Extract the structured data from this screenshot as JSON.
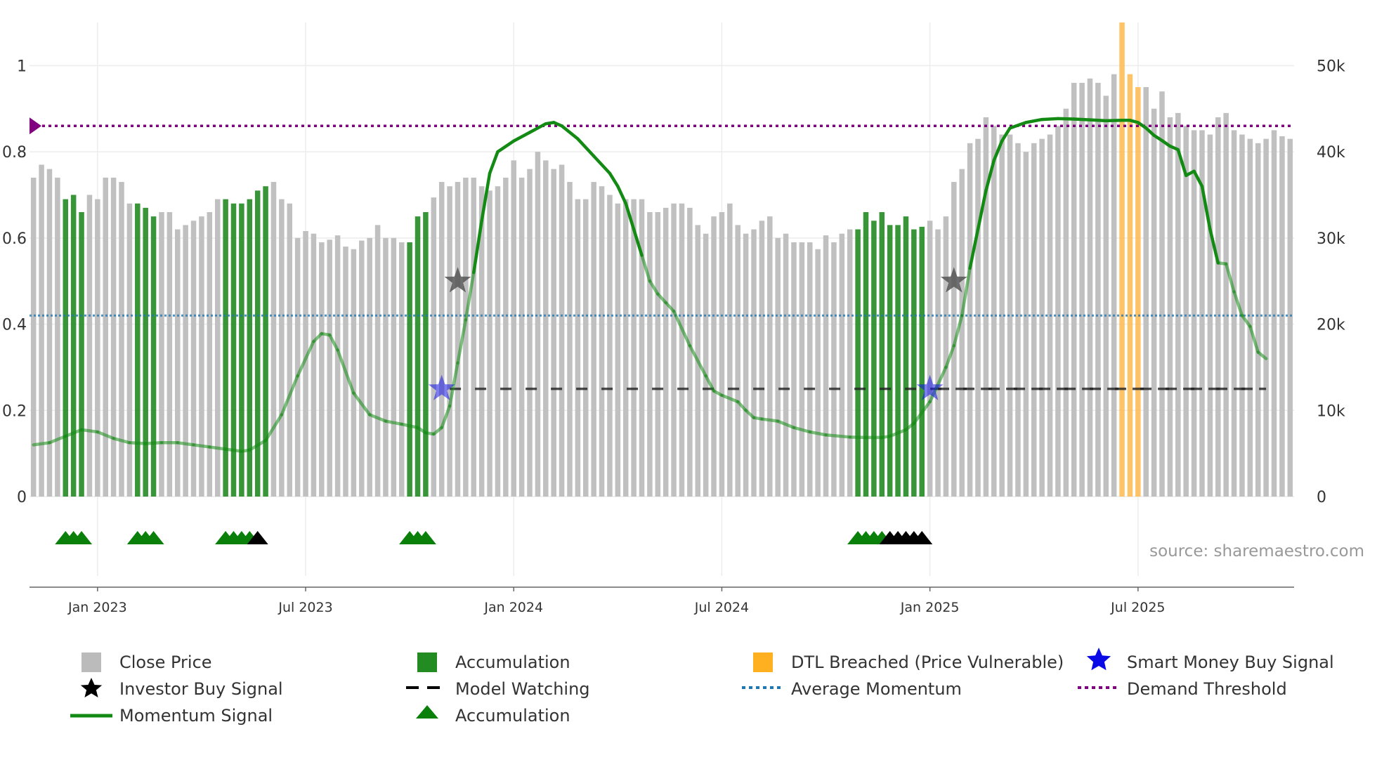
{
  "chart_data": {
    "type": "bar",
    "source": "source: sharemaestro.com",
    "left_axis": {
      "ticks": [
        0,
        0.2,
        0.4,
        0.6,
        0.8,
        1
      ],
      "labels": [
        "0",
        "0.2",
        "0.4",
        "0.6",
        "0.8",
        "1"
      ],
      "ylim": [
        0,
        1.1
      ]
    },
    "right_axis": {
      "ticks": [
        0,
        10000,
        20000,
        30000,
        40000,
        50000
      ],
      "labels": [
        "0",
        "10k",
        "20k",
        "30k",
        "40k",
        "50k"
      ],
      "ylim": [
        0,
        55000
      ]
    },
    "x_axis": {
      "ticks": [
        8,
        34,
        60,
        86,
        112,
        138
      ],
      "labels": [
        "Jan 2023",
        "Jul 2023",
        "Jan 2024",
        "Jul 2024",
        "Jan 2025",
        "Jul 2025"
      ]
    },
    "close_price": [
      37000,
      38500,
      38000,
      37000,
      34500,
      35000,
      33000,
      35000,
      34500,
      37000,
      37000,
      36500,
      34000,
      34000,
      33500,
      32500,
      33000,
      33000,
      31000,
      31500,
      32000,
      32500,
      33000,
      34500,
      34500,
      34000,
      34000,
      34500,
      35500,
      36000,
      36500,
      34500,
      34000,
      30000,
      30800,
      30500,
      29500,
      29800,
      30300,
      29000,
      28700,
      29700,
      30000,
      31500,
      30000,
      30000,
      29500,
      29500,
      32500,
      33000,
      34700,
      36500,
      36000,
      36500,
      37000,
      37000,
      36000,
      35500,
      36000,
      37000,
      39000,
      37000,
      38000,
      40000,
      39000,
      38000,
      38500,
      36500,
      34500,
      34500,
      36500,
      36000,
      35000,
      34000,
      34500,
      34500,
      34500,
      33000,
      33000,
      33500,
      34000,
      34000,
      33500,
      31500,
      30500,
      32500,
      33000,
      34000,
      31500,
      30500,
      31000,
      32000,
      32500,
      30000,
      30500,
      29500,
      29500,
      29500,
      28700,
      30300,
      29500,
      30500,
      31000,
      31000,
      33000,
      32000,
      33000,
      31500,
      31500,
      32500,
      31000,
      31300,
      32000,
      31000,
      32500,
      36500,
      38000,
      41000,
      41500,
      44000,
      43000,
      42000,
      42000,
      41000,
      40000,
      41000,
      41500,
      42000,
      43000,
      45000,
      48000,
      48000,
      48500,
      48000,
      46500,
      49000,
      49500,
      49000,
      47500,
      47500,
      45000,
      47000,
      44000,
      44500,
      43000,
      42500,
      42500,
      42000,
      44000,
      44500,
      42500,
      42000,
      41500,
      41000,
      41500,
      42500,
      41800,
      41500
    ],
    "accumulation_bar_indices": [
      4,
      5,
      6,
      13,
      14,
      15,
      24,
      25,
      26,
      27,
      28,
      29,
      47,
      48,
      49,
      103,
      104,
      105,
      106,
      107,
      108,
      109,
      110,
      111
    ],
    "dtl_breached_indices": [
      136,
      137,
      138
    ],
    "dtl_spike_index": 136,
    "dtl_spike_value": 55000,
    "momentum_signal": [
      [
        0,
        0.12
      ],
      [
        2,
        0.125
      ],
      [
        4,
        0.14
      ],
      [
        6,
        0.155
      ],
      [
        8,
        0.15
      ],
      [
        10,
        0.135
      ],
      [
        12,
        0.125
      ],
      [
        14,
        0.123
      ],
      [
        16,
        0.125
      ],
      [
        18,
        0.125
      ],
      [
        20,
        0.12
      ],
      [
        22,
        0.115
      ],
      [
        24,
        0.11
      ],
      [
        26,
        0.105
      ],
      [
        27,
        0.108
      ],
      [
        29,
        0.13
      ],
      [
        31,
        0.19
      ],
      [
        33,
        0.28
      ],
      [
        35,
        0.36
      ],
      [
        36,
        0.378
      ],
      [
        37,
        0.375
      ],
      [
        38,
        0.34
      ],
      [
        40,
        0.24
      ],
      [
        42,
        0.19
      ],
      [
        44,
        0.175
      ],
      [
        46,
        0.168
      ],
      [
        48,
        0.16
      ],
      [
        49,
        0.148
      ],
      [
        50,
        0.145
      ],
      [
        51,
        0.16
      ],
      [
        52,
        0.21
      ],
      [
        53,
        0.31
      ],
      [
        54,
        0.41
      ],
      [
        55,
        0.52
      ],
      [
        56,
        0.64
      ],
      [
        57,
        0.75
      ],
      [
        58,
        0.8
      ],
      [
        60,
        0.825
      ],
      [
        62,
        0.845
      ],
      [
        64,
        0.865
      ],
      [
        65,
        0.868
      ],
      [
        66,
        0.86
      ],
      [
        68,
        0.83
      ],
      [
        70,
        0.79
      ],
      [
        72,
        0.75
      ],
      [
        73,
        0.72
      ],
      [
        74,
        0.68
      ],
      [
        75,
        0.62
      ],
      [
        76,
        0.56
      ],
      [
        77,
        0.5
      ],
      [
        78,
        0.47
      ],
      [
        79,
        0.45
      ],
      [
        80,
        0.43
      ],
      [
        82,
        0.35
      ],
      [
        84,
        0.28
      ],
      [
        85,
        0.245
      ],
      [
        86,
        0.235
      ],
      [
        88,
        0.22
      ],
      [
        89,
        0.2
      ],
      [
        90,
        0.183
      ],
      [
        91,
        0.18
      ],
      [
        93,
        0.175
      ],
      [
        95,
        0.16
      ],
      [
        97,
        0.15
      ],
      [
        99,
        0.143
      ],
      [
        102,
        0.138
      ],
      [
        104,
        0.137
      ],
      [
        106,
        0.137
      ],
      [
        107,
        0.14
      ],
      [
        109,
        0.155
      ],
      [
        110,
        0.17
      ],
      [
        112,
        0.22
      ],
      [
        114,
        0.3
      ],
      [
        115,
        0.35
      ],
      [
        116,
        0.42
      ],
      [
        117,
        0.53
      ],
      [
        118,
        0.62
      ],
      [
        119,
        0.71
      ],
      [
        120,
        0.78
      ],
      [
        121,
        0.825
      ],
      [
        122,
        0.855
      ],
      [
        124,
        0.868
      ],
      [
        126,
        0.875
      ],
      [
        128,
        0.877
      ],
      [
        130,
        0.876
      ],
      [
        132,
        0.874
      ],
      [
        134,
        0.872
      ],
      [
        136,
        0.873
      ],
      [
        137,
        0.873
      ],
      [
        138,
        0.868
      ],
      [
        139,
        0.855
      ],
      [
        140,
        0.838
      ],
      [
        141,
        0.826
      ],
      [
        142,
        0.813
      ],
      [
        143,
        0.805
      ],
      [
        144,
        0.745
      ],
      [
        145,
        0.755
      ],
      [
        146,
        0.72
      ],
      [
        147,
        0.62
      ],
      [
        148,
        0.542
      ],
      [
        149,
        0.54
      ],
      [
        150,
        0.475
      ],
      [
        151,
        0.42
      ],
      [
        152,
        0.395
      ],
      [
        153,
        0.335
      ],
      [
        154,
        0.32
      ]
    ],
    "average_momentum": 0.42,
    "demand_threshold": 0.86,
    "model_watching_level": 0.25,
    "model_watching_ranges": [
      [
        52,
        154
      ],
      [
        113,
        154
      ]
    ],
    "investor_buy_signals": [
      [
        53,
        0.5
      ],
      [
        115,
        0.5
      ]
    ],
    "smart_money_buy_signals": [
      [
        51,
        0.25
      ],
      [
        112,
        0.25
      ]
    ],
    "green_triangle_indices": [
      4,
      5,
      6,
      13,
      14,
      15,
      24,
      25,
      26,
      27,
      47,
      48,
      49,
      103,
      104,
      105,
      106
    ],
    "black_triangle_indices": [
      28,
      107,
      108,
      109,
      110,
      111
    ],
    "colors": {
      "close_price": "#c0c0c0",
      "accumulation": "#228b22",
      "dtl": "#ffb84d",
      "momentum": "#138a13",
      "average_momentum": "#1f77b4",
      "demand_threshold": "#800080",
      "model_watching": "#222222",
      "investor_star": "#555555",
      "smart_star": "#1414e6",
      "triangle_green": "#0a7f0a",
      "triangle_black": "#000000"
    }
  },
  "legend": {
    "close_price": "Close Price",
    "accumulation_bar": "Accumulation",
    "dtl": "DTL Breached (Price Vulnerable)",
    "smart_money": "Smart Money Buy Signal",
    "investor_buy": "Investor Buy Signal",
    "model_watching": "Model Watching",
    "average_momentum": "Average Momentum",
    "demand_threshold": "Demand Threshold",
    "momentum_signal": "Momentum Signal",
    "accumulation_triangle": "Accumulation"
  }
}
